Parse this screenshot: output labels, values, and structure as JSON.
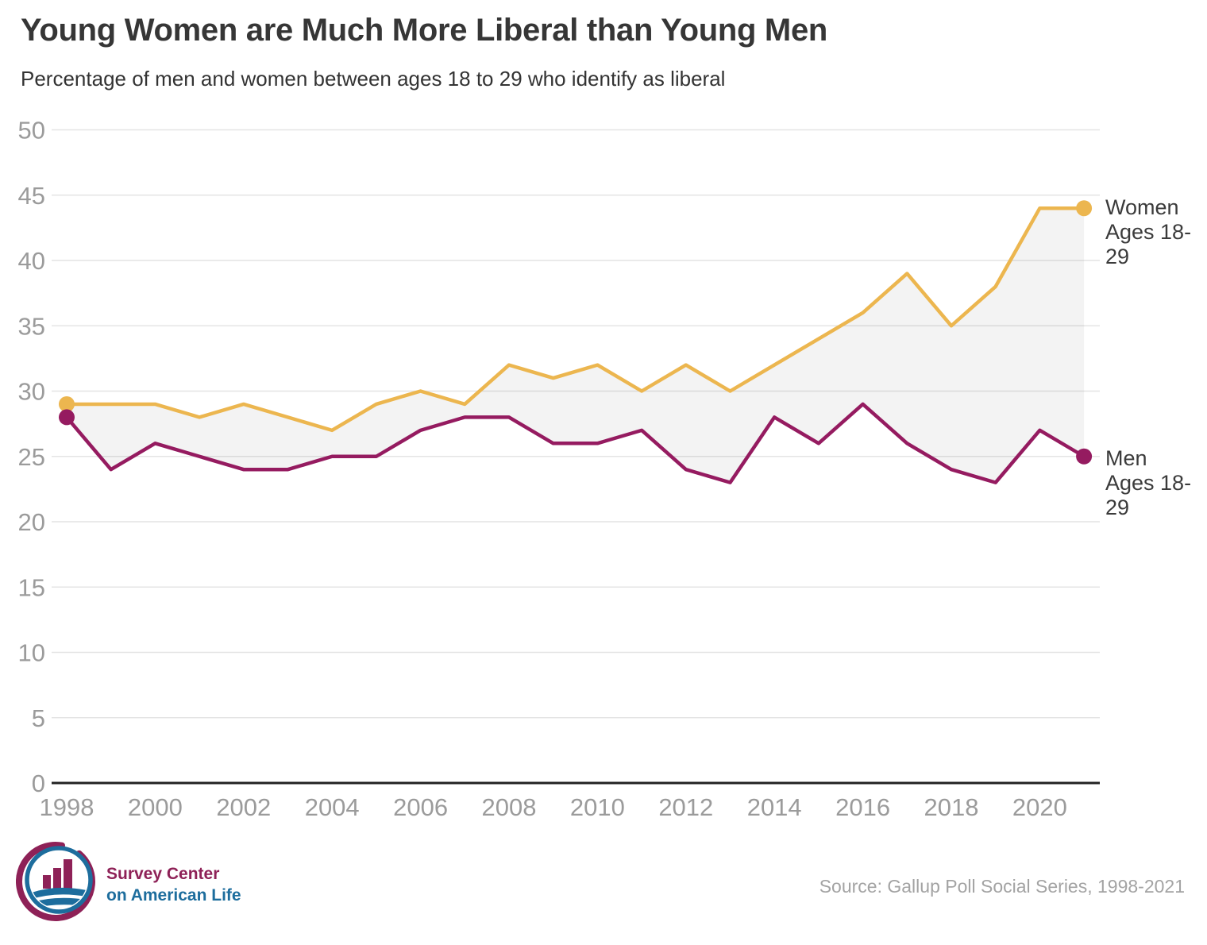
{
  "header": {
    "title": "Young Women are Much More Liberal than Young Men",
    "subtitle": "Percentage of men and women between ages 18 to 29 who identify as liberal"
  },
  "chart_data": {
    "type": "line",
    "x": [
      1998,
      1999,
      2000,
      2001,
      2002,
      2003,
      2004,
      2005,
      2006,
      2007,
      2008,
      2009,
      2010,
      2011,
      2012,
      2013,
      2014,
      2015,
      2016,
      2017,
      2018,
      2019,
      2020,
      2021
    ],
    "series": [
      {
        "name": "Women Ages 18-29",
        "color": "#ecb64f",
        "values": [
          29,
          29,
          29,
          28,
          29,
          28,
          27,
          29,
          30,
          29,
          32,
          31,
          32,
          30,
          32,
          30,
          32,
          34,
          36,
          39,
          35,
          38,
          44,
          44
        ]
      },
      {
        "name": "Men Ages 18-29",
        "color": "#951b60",
        "values": [
          28,
          24,
          26,
          25,
          24,
          24,
          25,
          25,
          27,
          28,
          28,
          26,
          26,
          27,
          24,
          23,
          28,
          26,
          29,
          26,
          24,
          23,
          27,
          25
        ]
      }
    ],
    "title": "Young Women are Much More Liberal than Young Men",
    "xlabel": "",
    "ylabel": "",
    "ylim": [
      0,
      50
    ],
    "yticks": [
      0,
      5,
      10,
      15,
      20,
      25,
      30,
      35,
      40,
      45,
      50
    ],
    "xticks": [
      1998,
      2000,
      2002,
      2004,
      2006,
      2008,
      2010,
      2012,
      2014,
      2016,
      2018,
      2020
    ],
    "grid": "horizontal",
    "legend_position": "right-end-labels",
    "area_fill_between_series": true,
    "area_fill_color": "rgba(135,135,135,0.1)",
    "endpoint_markers": "first-and-last"
  },
  "colors": {
    "women_line": "#ecb64f",
    "men_line": "#951b60",
    "grid": "#e4e4e4",
    "axis": "#222222",
    "tick_label": "#9b9b9b",
    "title_text": "#363636",
    "series_label_text": "#3b3b3b"
  },
  "footer": {
    "logo_text_line1": "Survey Center",
    "logo_text_line2": "on American Life",
    "logo_color_primary": "#8e2157",
    "logo_color_secondary": "#1d6d9d",
    "source": "Source: Gallup Poll Social Series, 1998-2021"
  }
}
